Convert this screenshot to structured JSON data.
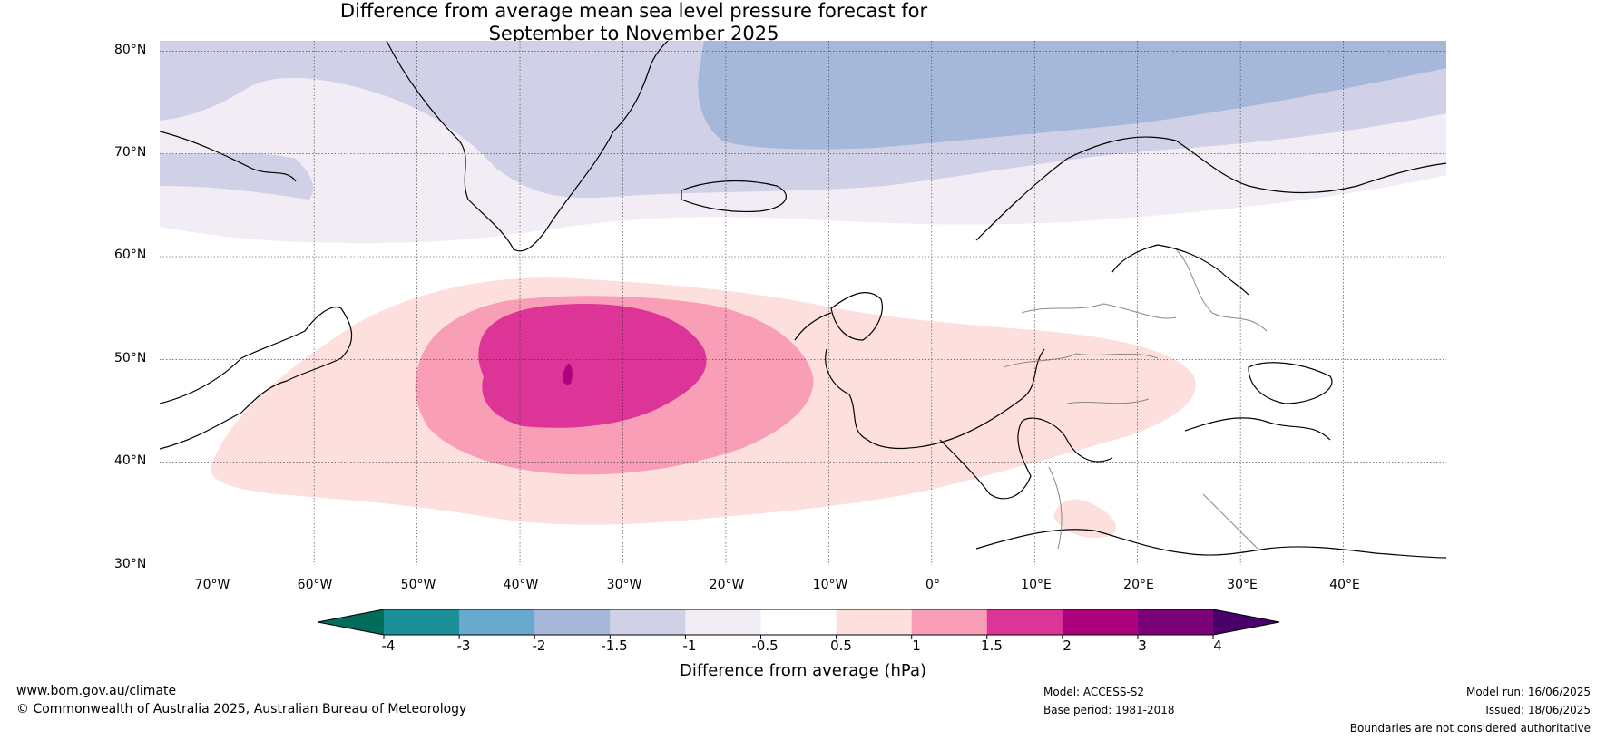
{
  "title": {
    "line1": "Difference from average mean sea level pressure forecast for",
    "line2": "September to November 2025"
  },
  "map": {
    "lon_range": [
      -75,
      50
    ],
    "lat_range": [
      30,
      81
    ],
    "lat_ticks": [
      "80°N",
      "70°N",
      "60°N",
      "50°N",
      "40°N",
      "30°N"
    ],
    "lon_ticks": [
      "70°W",
      "60°W",
      "50°W",
      "40°W",
      "30°W",
      "20°W",
      "10°W",
      "0°",
      "10°E",
      "20°E",
      "30°E",
      "40°E"
    ],
    "gridlines": true,
    "anomaly_regions": [
      {
        "level": "-2 to -1.5",
        "color": "#a6b8da",
        "extent_lon": [
          -23,
          50
        ],
        "extent_lat": [
          72,
          81
        ]
      },
      {
        "level": "-1.5 to -1",
        "color": "#d0d1e6",
        "extent_lon": [
          -75,
          50
        ],
        "extent_lat": [
          66,
          81
        ]
      },
      {
        "level": "-1 to -0.5",
        "color": "#f2ecf5",
        "extent_lon": [
          -75,
          50
        ],
        "extent_lat": [
          61,
          74
        ]
      },
      {
        "level": "0.5 to 1",
        "color": "#fde0dd",
        "extent_lon": [
          -70,
          26
        ],
        "extent_lat": [
          32,
          58
        ]
      },
      {
        "level": "1 to 1.5",
        "color": "#f89fb7",
        "extent_lon": [
          -50,
          -8
        ],
        "extent_lat": [
          38,
          56
        ]
      },
      {
        "level": "1.5 to 2",
        "color": "#dd3497",
        "extent_lon": [
          -44,
          -20
        ],
        "extent_lat": [
          42,
          53
        ]
      },
      {
        "level": "2 to 3",
        "color": "#ae017e",
        "extent_lon": [
          -36,
          -35
        ],
        "extent_lat": [
          48,
          49
        ]
      }
    ]
  },
  "colorbar": {
    "ticks": [
      "-4",
      "-3",
      "-2",
      "-1.5",
      "-1",
      "-0.5",
      "0.5",
      "1",
      "1.5",
      "2",
      "3",
      "4"
    ],
    "colors": [
      "#1b9098",
      "#67a9cf",
      "#a6b8da",
      "#d0d1e6",
      "#f2ecf5",
      "#ffffff",
      "#fde0dd",
      "#f89fb7",
      "#dd3497",
      "#ae017e",
      "#7a0177"
    ],
    "under_color": "#016c59",
    "over_color": "#49006a",
    "label": "Difference from average (hPa)"
  },
  "footer": {
    "website": "www.bom.gov.au/climate",
    "copyright": "© Commonwealth of Australia 2025, Australian Bureau of Meteorology",
    "model": "Model: ACCESS-S2",
    "base_period": "Base period: 1981-2018",
    "model_run": "Model run: 16/06/2025",
    "issued": "Issued: 18/06/2025",
    "disclaimer": "Boundaries are not considered authoritative"
  }
}
